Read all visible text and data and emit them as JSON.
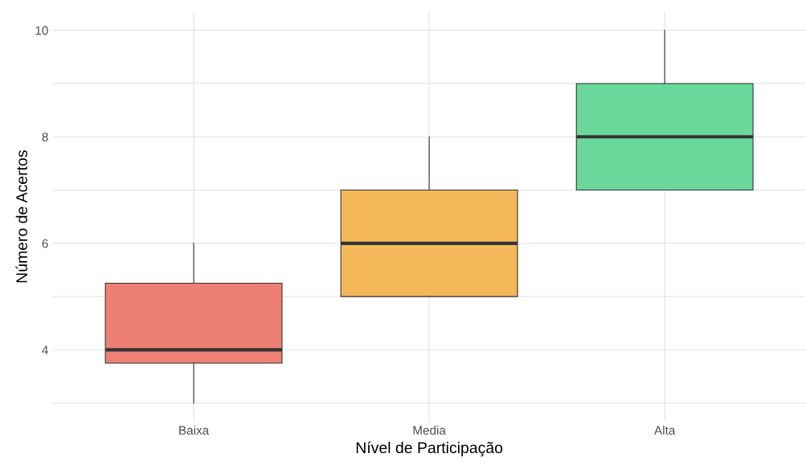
{
  "chart_data": {
    "type": "box",
    "xlabel": "Nível de Participação",
    "ylabel": "Número de Acertos",
    "categories": [
      "Baixa",
      "Media",
      "Alta"
    ],
    "colors": [
      "#ee7f74",
      "#f4b85a",
      "#6bd89b"
    ],
    "boxes": [
      {
        "low": 3,
        "q1": 3.75,
        "median": 4,
        "q3": 5.25,
        "high": 6
      },
      {
        "low": 5,
        "q1": 5,
        "median": 6,
        "q3": 7,
        "high": 8
      },
      {
        "low": 7,
        "q1": 7,
        "median": 8,
        "q3": 9,
        "high": 10
      }
    ],
    "ylim": [
      2.65,
      10.35
    ],
    "yticks": [
      {
        "value": 3,
        "label": null
      },
      4,
      {
        "value": 5,
        "label": null
      },
      6,
      {
        "value": 7,
        "label": null
      },
      8,
      {
        "value": 9,
        "label": null
      },
      10
    ],
    "grid": true
  }
}
